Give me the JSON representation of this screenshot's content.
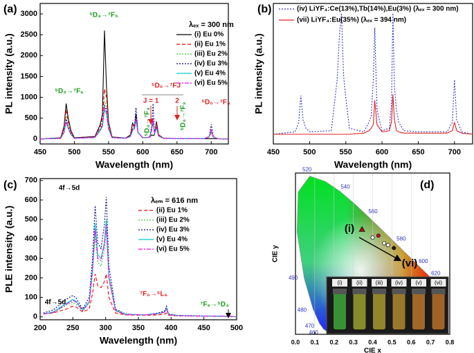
{
  "chart_data": [
    {
      "type": "line",
      "label": "(a)",
      "xlabel": "Wavelength  (nm)",
      "ylabel": "PL intensity  (a.u.)",
      "xlim": [
        450,
        725
      ],
      "ylim": [
        -120,
        3250
      ],
      "xticks": [
        450,
        500,
        550,
        600,
        650,
        700
      ],
      "yticks": [
        0,
        500,
        1000,
        1500,
        2000,
        2500,
        3000
      ],
      "x": [
        450,
        480,
        485,
        488,
        491,
        495,
        500,
        530,
        538,
        541,
        544,
        547,
        550,
        555,
        575,
        582,
        585,
        588,
        590,
        593,
        600,
        610,
        613,
        615,
        617,
        620,
        623,
        630,
        650,
        690,
        697,
        700,
        703,
        710,
        725
      ],
      "legend_title": "λₑₓ = 300 nm",
      "series": [
        {
          "name": "(i)  Eu 0%",
          "color": "#000000",
          "style": "solid",
          "values": [
            0,
            30,
            300,
            850,
            500,
            200,
            30,
            60,
            350,
            600,
            2600,
            1250,
            400,
            50,
            20,
            100,
            380,
            300,
            600,
            150,
            30,
            40,
            100,
            80,
            100,
            420,
            100,
            20,
            10,
            5,
            5,
            10,
            5,
            5,
            0
          ]
        },
        {
          "name": "(ii)  Eu 1%",
          "color": "#ff0000",
          "style": "dashed",
          "values": [
            0,
            25,
            250,
            700,
            420,
            170,
            25,
            50,
            300,
            500,
            1200,
            1000,
            350,
            45,
            20,
            90,
            320,
            300,
            500,
            150,
            30,
            40,
            200,
            400,
            120,
            380,
            90,
            20,
            10,
            8,
            40,
            150,
            40,
            5,
            0
          ]
        },
        {
          "name": "(iii)  Eu 2%",
          "color": "#33cc33",
          "style": "dotted",
          "values": [
            0,
            20,
            200,
            550,
            330,
            140,
            20,
            40,
            250,
            400,
            900,
            800,
            300,
            40,
            20,
            80,
            260,
            280,
            500,
            160,
            30,
            40,
            250,
            500,
            130,
            320,
            80,
            20,
            10,
            10,
            50,
            200,
            50,
            5,
            0
          ]
        },
        {
          "name": "(iv)  Eu 3%",
          "color": "#000080",
          "style": "dotted",
          "values": [
            0,
            20,
            180,
            480,
            300,
            120,
            20,
            40,
            220,
            350,
            800,
            700,
            260,
            35,
            20,
            70,
            240,
            280,
            750,
            160,
            30,
            45,
            300,
            850,
            150,
            300,
            80,
            20,
            10,
            10,
            60,
            350,
            60,
            5,
            0
          ]
        },
        {
          "name": "(v)  Eu 4%",
          "color": "#00cccc",
          "style": "solid",
          "values": [
            0,
            15,
            150,
            400,
            250,
            100,
            15,
            35,
            200,
            300,
            700,
            600,
            230,
            30,
            15,
            60,
            200,
            250,
            450,
            150,
            30,
            40,
            220,
            450,
            120,
            260,
            70,
            15,
            10,
            10,
            50,
            200,
            50,
            5,
            0
          ]
        },
        {
          "name": "(vi)  Eu 5%",
          "color": "#ff00ff",
          "style": "dashdot",
          "values": [
            0,
            15,
            170,
            450,
            280,
            110,
            15,
            35,
            230,
            320,
            760,
            650,
            240,
            30,
            15,
            60,
            220,
            260,
            480,
            150,
            30,
            40,
            240,
            500,
            130,
            280,
            75,
            15,
            10,
            10,
            55,
            240,
            55,
            5,
            0
          ]
        }
      ],
      "annotations": [
        {
          "text": "⁵D₄→⁷F₆",
          "color": "#1a9a1a"
        },
        {
          "text": "⁵D₄→⁷F₅",
          "color": "#1a9a1a"
        },
        {
          "text": "⁵D₀→⁷FJ",
          "color": "#e02020"
        },
        {
          "text": "J = 1",
          "color": "#e02020"
        },
        {
          "text": "2",
          "color": "#e02020"
        },
        {
          "text": "⁵D₄→⁷F₄",
          "color": "#1a9a1a"
        },
        {
          "text": "⁵D₄→⁷F₃",
          "color": "#1a9a1a"
        },
        {
          "text": "⁵D₀→⁷F₄",
          "color": "#e02020"
        }
      ]
    },
    {
      "type": "line",
      "label": "(b)",
      "xlabel": "Wavelength  (nm)",
      "ylabel": "PL intensity  (a.u.)",
      "xlim": [
        450,
        725
      ],
      "ylim": [
        -8,
        108
      ],
      "xticks": [
        450,
        500,
        550,
        600,
        650,
        700
      ],
      "x": [
        450,
        480,
        485,
        488,
        491,
        495,
        500,
        530,
        538,
        541,
        544,
        547,
        550,
        555,
        575,
        582,
        585,
        588,
        590,
        593,
        600,
        610,
        613,
        615,
        617,
        620,
        623,
        630,
        650,
        690,
        697,
        700,
        703,
        710,
        725
      ],
      "series": [
        {
          "name": "(iv) LiYF₄:Ce(13%),Tb(14%),Eu(3%)  (λₑₓ = 300 nm)",
          "color": "#3333cc",
          "style": "dotted",
          "values": [
            0,
            2,
            10,
            32,
            12,
            5,
            2,
            3,
            45,
            80,
            100,
            48,
            30,
            5,
            2,
            10,
            15,
            45,
            88,
            20,
            3,
            5,
            25,
            100,
            40,
            20,
            10,
            3,
            2,
            2,
            10,
            45,
            12,
            2,
            0
          ]
        },
        {
          "name": "(vii) LiYF₄:Eu(35%)  (λₑₓ = 394 nm)",
          "color": "#e02020",
          "style": "solid",
          "values": [
            0,
            0,
            0,
            0,
            0,
            0,
            0,
            0,
            0,
            0,
            0,
            0,
            0,
            0,
            1,
            3,
            5,
            8,
            28,
            8,
            2,
            3,
            10,
            33,
            12,
            3,
            2,
            1,
            1,
            1,
            3,
            10,
            3,
            1,
            0
          ]
        }
      ]
    },
    {
      "type": "line",
      "label": "(c)",
      "xlabel": "Wavelength  (nm)",
      "ylabel": "PLE intensity  (a.u.)",
      "xlim": [
        200,
        500
      ],
      "ylim": [
        -15,
        710
      ],
      "xticks": [
        200,
        250,
        300,
        350,
        400,
        450,
        500
      ],
      "yticks": [
        0,
        100,
        200,
        300,
        400,
        500,
        600,
        700
      ],
      "x": [
        205,
        220,
        240,
        250,
        255,
        265,
        275,
        280,
        284,
        288,
        293,
        298,
        301,
        305,
        315,
        330,
        360,
        380,
        390,
        393,
        396,
        410,
        450,
        490,
        500
      ],
      "legend_title": "λₑₘ = 616 nm",
      "series": [
        {
          "name": "(ii)  Eu 1%",
          "color": "#ff0000",
          "style": "dashed",
          "values": [
            15,
            20,
            40,
            55,
            50,
            25,
            40,
            120,
            220,
            160,
            150,
            180,
            220,
            100,
            20,
            10,
            8,
            10,
            15,
            20,
            8,
            5,
            3,
            2,
            0
          ]
        },
        {
          "name": "(iii)  Eu 2%",
          "color": "#33cc33",
          "style": "dotted",
          "values": [
            15,
            20,
            60,
            75,
            65,
            30,
            70,
            220,
            420,
            280,
            260,
            340,
            450,
            190,
            30,
            12,
            10,
            15,
            22,
            40,
            10,
            6,
            4,
            3,
            0
          ]
        },
        {
          "name": "(iv)  Eu 3%",
          "color": "#000080",
          "style": "dotted",
          "values": [
            20,
            35,
            90,
            110,
            95,
            40,
            100,
            300,
            570,
            380,
            350,
            470,
            615,
            260,
            40,
            15,
            10,
            20,
            30,
            55,
            15,
            8,
            5,
            3,
            0
          ]
        },
        {
          "name": "(v)  Eu 4%",
          "color": "#00cccc",
          "style": "solid",
          "values": [
            15,
            25,
            70,
            90,
            80,
            35,
            80,
            250,
            480,
            320,
            300,
            380,
            500,
            210,
            35,
            13,
            10,
            17,
            25,
            45,
            12,
            7,
            4,
            3,
            0
          ]
        },
        {
          "name": "(vi)  Eu 5%",
          "color": "#ff00ff",
          "style": "dashdot",
          "values": [
            15,
            22,
            65,
            85,
            75,
            32,
            75,
            240,
            450,
            300,
            290,
            370,
            470,
            200,
            32,
            12,
            10,
            16,
            24,
            42,
            11,
            6,
            4,
            3,
            0
          ]
        }
      ],
      "annotations": [
        {
          "text": "4f→5d",
          "color": "#000000"
        },
        {
          "text": "4f→5d",
          "color": "#000000"
        },
        {
          "text": "⁷F₀→⁵L₆",
          "color": "#e02020"
        },
        {
          "text": "⁷F₆→⁵D₄",
          "color": "#1a9a1a"
        }
      ]
    },
    {
      "type": "scatter",
      "label": "(d)",
      "xlabel": "CIE x",
      "ylabel": "CIE y",
      "xlim": [
        0,
        0.8
      ],
      "ylim": [
        0,
        0.85
      ],
      "grid": true,
      "xticks": [
        {
          "value": 0,
          "label": "0.0"
        },
        0.1,
        0.2,
        0.3,
        0.4,
        0.5,
        0.6,
        0.7,
        0.8
      ],
      "x": [
        0.345,
        0.4,
        0.43,
        0.46,
        0.48,
        0.51
      ],
      "values": [
        0.553,
        0.51,
        0.52,
        0.48,
        0.47,
        0.455
      ],
      "colors": [
        "#b01010",
        "#ffffff",
        "#d01030",
        "#ffffff",
        "#ffffff",
        "#202020"
      ],
      "locus_labels": [
        "460",
        "470",
        "480",
        "490",
        "520",
        "540",
        "560",
        "580",
        "600",
        "620"
      ],
      "annotations": [
        {
          "text": "(i)",
          "color": "#000000"
        },
        {
          "text": "(vi)",
          "color": "#000000"
        }
      ],
      "inset_labels": [
        "(i)",
        "(ii)",
        "(iii)",
        "(iv)",
        "(v)",
        "(vi)"
      ]
    }
  ]
}
